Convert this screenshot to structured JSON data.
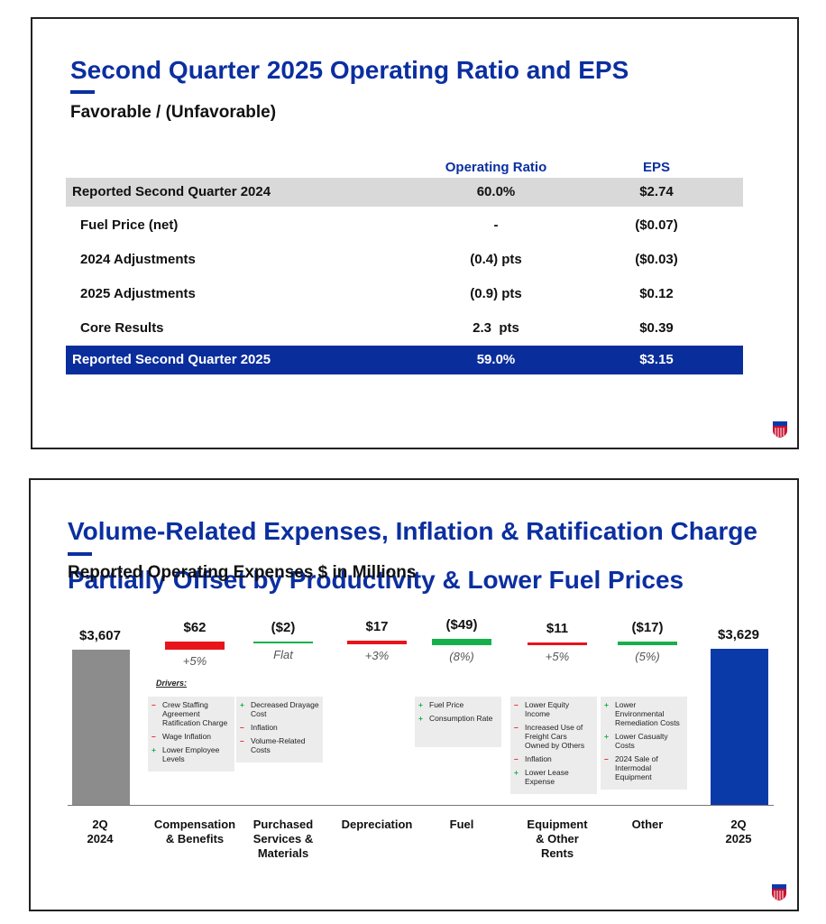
{
  "slide1": {
    "title": "Second Quarter 2025 Operating Ratio and EPS",
    "subtitle": "Favorable / (Unfavorable)",
    "table": {
      "columns": [
        "Operating Ratio",
        "EPS"
      ],
      "rows": [
        [
          "Reported Second Quarter 2024",
          "60.0%",
          "$2.74"
        ],
        [
          "Fuel Price (net)",
          "-",
          "($0.07)"
        ],
        [
          "2024 Adjustments",
          "(0.4) pts",
          "($0.03)"
        ],
        [
          "2025 Adjustments",
          "(0.9) pts",
          "$0.12"
        ],
        [
          "Core Results",
          "2.3  pts",
          "$0.39"
        ],
        [
          "Reported Second Quarter 2025",
          "59.0%",
          "$3.15"
        ]
      ]
    }
  },
  "slide2": {
    "title_lines": [
      "Volume-Related Expenses, Inflation & Ratification Charge",
      "Partially Offset by Productivity & Lower Fuel Prices"
    ],
    "subtitle": "Reported Operating Expenses $ in Millions",
    "drivers_title": "Drivers:"
  },
  "chart_data": {
    "type": "waterfall",
    "categories": [
      "2Q\n2024",
      "Compensation\n& Benefits",
      "Purchased\nServices &\nMaterials",
      "Depreciation",
      "Fuel",
      "Equipment\n& Other\nRents",
      "Other",
      "2Q\n2025"
    ],
    "measure": [
      "total",
      "relative",
      "relative",
      "relative",
      "relative",
      "relative",
      "relative",
      "total"
    ],
    "values": [
      3607,
      62,
      -2,
      17,
      -49,
      11,
      -17,
      3629
    ],
    "value_labels": [
      "$3,607",
      "$62",
      "($2)",
      "$17",
      "($49)",
      "$11",
      "($17)",
      "$3,629"
    ],
    "change_labels": [
      null,
      "+5%",
      "Flat",
      "+3%",
      "(8%)",
      "+5%",
      "(5%)",
      null
    ],
    "total_color": [
      "#8c8c8c",
      "#0a3aa8"
    ],
    "increase_color": "#e8141b",
    "decrease_color": "#16b04a",
    "drivers": [
      null,
      [
        {
          "sign": "–",
          "text": "Crew Staffing Agreement Ratification Charge"
        },
        {
          "sign": "–",
          "text": "Wage Inflation"
        },
        {
          "sign": "+",
          "text": "Lower Employee Levels"
        }
      ],
      [
        {
          "sign": "+",
          "text": "Decreased Drayage Cost"
        },
        {
          "sign": "–",
          "text": "Inflation"
        },
        {
          "sign": "–",
          "text": "Volume-Related Costs"
        }
      ],
      null,
      [
        {
          "sign": "+",
          "text": "Fuel Price"
        },
        {
          "sign": "+",
          "text": "Consumption Rate"
        }
      ],
      [
        {
          "sign": "–",
          "text": "Lower Equity Income"
        },
        {
          "sign": "–",
          "text": "Increased Use of Freight Cars Owned by Others"
        },
        {
          "sign": "–",
          "text": "Inflation"
        },
        {
          "sign": "+",
          "text": "Lower Lease Expense"
        }
      ],
      [
        {
          "sign": "+",
          "text": "Lower Environmental Remediation Costs"
        },
        {
          "sign": "+",
          "text": "Lower Casualty Costs"
        },
        {
          "sign": "–",
          "text": "2024 Sale of Intermodal Equipment"
        }
      ],
      null
    ]
  }
}
